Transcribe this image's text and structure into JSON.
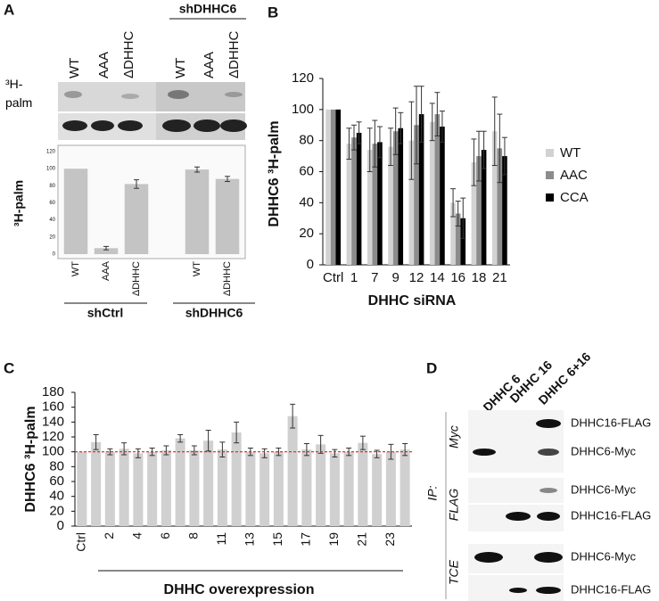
{
  "panel_letters": [
    "A",
    "B",
    "C",
    "D"
  ],
  "panel_a": {
    "lanes": [
      "WT",
      "AAA",
      "ΔDHHC",
      "WT",
      "AAA",
      "ΔDHHC"
    ],
    "blot_header": "shDHHC6",
    "blot_label": "³H-palm",
    "groups": [
      "shCtrl",
      "shDHHC6"
    ]
  },
  "panel_d": {
    "columns": [
      "DHHC 6",
      "DHHC 16",
      "DHHC 6+16"
    ],
    "ip": "IP:",
    "sections": [
      "Myc",
      "FLAG",
      "TCE"
    ],
    "rows": [
      "DHHC16-FLAG",
      "DHHC6-Myc",
      "DHHC6-Myc",
      "DHHC16-FLAG",
      "DHHC6-Myc",
      "DHHC16-FLAG"
    ]
  },
  "chart_data": [
    {
      "type": "bar",
      "ylabel": "³H-palm",
      "categories": [
        "WT",
        "AAA",
        "ΔDHHC",
        null,
        "WT",
        "ΔDHHC"
      ],
      "values": [
        100,
        7,
        82,
        null,
        99,
        88
      ],
      "errors": [
        0,
        2,
        5,
        null,
        3,
        3
      ],
      "color": "#c4c4c4",
      "ylim": [
        0,
        120
      ],
      "yticks": [
        0,
        20,
        40,
        60,
        80,
        100,
        120
      ]
    },
    {
      "type": "bar",
      "ylabel": "DHHC6 ³H-palm",
      "xlabel": "DHHC siRNA",
      "categories": [
        "Ctrl",
        "1",
        "7",
        "9",
        "12",
        "14",
        "16",
        "18",
        "21"
      ],
      "series": [
        {
          "name": "WT",
          "color": "#d2d2d2",
          "values": [
            100,
            78,
            74,
            76,
            80,
            92,
            40,
            66,
            86
          ],
          "errors": [
            0,
            10,
            14,
            12,
            25,
            12,
            9,
            15,
            22
          ]
        },
        {
          "name": "AAC",
          "color": "#8c8c8c",
          "values": [
            100,
            82,
            78,
            86,
            90,
            97,
            33,
            70,
            75
          ],
          "errors": [
            0,
            8,
            15,
            15,
            25,
            14,
            8,
            16,
            22
          ]
        },
        {
          "name": "CCA",
          "color": "#000000",
          "values": [
            100,
            85,
            79,
            88,
            97,
            89,
            30,
            74,
            70
          ],
          "errors": [
            0,
            7,
            10,
            10,
            18,
            10,
            13,
            12,
            12
          ]
        }
      ],
      "ylim": [
        0,
        120
      ],
      "yticks": [
        0,
        20,
        40,
        60,
        80,
        100,
        120
      ]
    },
    {
      "type": "bar",
      "ylabel": "DHHC6 ³H-palm",
      "xlabel": "DHHC overexpression",
      "categories": [
        "Ctrl",
        null,
        "2",
        null,
        "4",
        null,
        "6",
        null,
        "8",
        null,
        "11",
        null,
        "13",
        null,
        "15",
        null,
        "17",
        null,
        "19",
        null,
        "21",
        null,
        "23",
        null
      ],
      "values": [
        100,
        113,
        100,
        104,
        98,
        100,
        102,
        118,
        102,
        115,
        103,
        126,
        100,
        98,
        100,
        148,
        103,
        110,
        98,
        100,
        112,
        97,
        100,
        103
      ],
      "errors": [
        0,
        10,
        4,
        8,
        6,
        5,
        6,
        5,
        6,
        14,
        10,
        14,
        5,
        6,
        5,
        16,
        8,
        12,
        5,
        5,
        9,
        5,
        10,
        8
      ],
      "color": "#d0d0d0",
      "reference_line": 100,
      "reference_color": "#e02020",
      "ylim": [
        0,
        180
      ],
      "yticks": [
        0,
        20,
        40,
        60,
        80,
        100,
        120,
        140,
        160,
        180
      ]
    }
  ]
}
